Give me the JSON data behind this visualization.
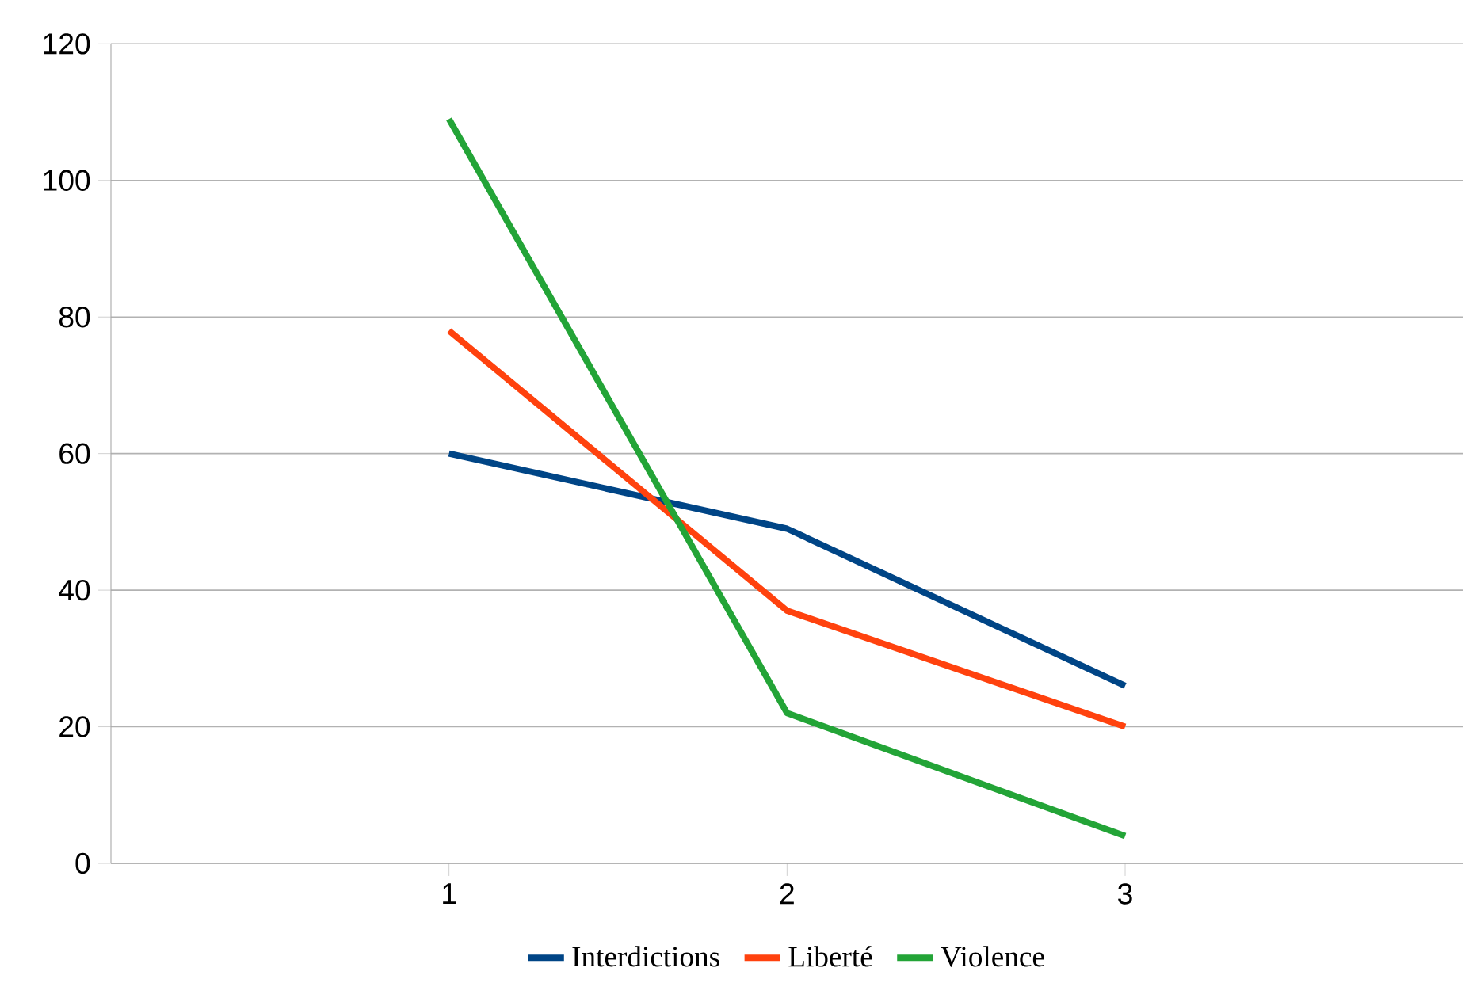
{
  "chart_data": {
    "type": "line",
    "categories": [
      "1",
      "2",
      "3"
    ],
    "series": [
      {
        "name": "Interdictions",
        "color": "#004586",
        "values": [
          60,
          49,
          26
        ]
      },
      {
        "name": "Liberté",
        "color": "#ff420e",
        "values": [
          78,
          37,
          20
        ]
      },
      {
        "name": "Violence",
        "color": "#23a437",
        "values": [
          109,
          22,
          4
        ]
      }
    ],
    "ylim": [
      0,
      120
    ],
    "yticks": [
      0,
      20,
      40,
      60,
      80,
      100,
      120
    ],
    "grid": "y",
    "legend": "bottom",
    "marker": "none",
    "line_style": "solid"
  }
}
